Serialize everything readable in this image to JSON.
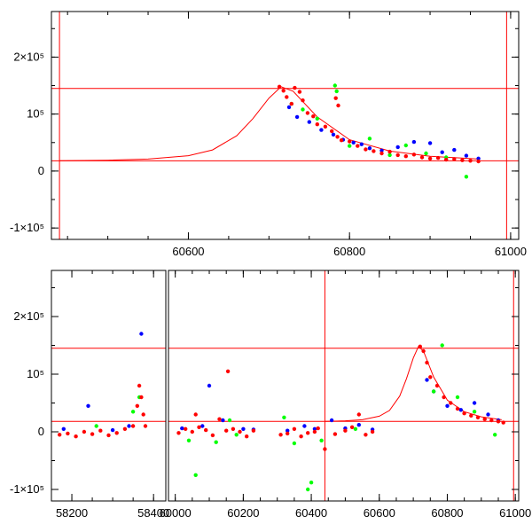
{
  "colors": {
    "model": "#ff0000",
    "series_red": "#ff0000",
    "series_blue": "#0000ff",
    "series_green": "#00ff00",
    "axes": "#000000"
  },
  "chart_data": [
    {
      "type": "scatter",
      "panel": "top",
      "title": "",
      "xlabel": "",
      "ylabel": "",
      "xlim": [
        60430,
        61010
      ],
      "ylim": [
        -120000,
        280000
      ],
      "x_ticks": [
        60600,
        60800,
        61000
      ],
      "x_tick_labels": [
        "60600",
        "60800",
        "61000"
      ],
      "y_ticks": [
        -100000,
        0,
        100000,
        200000
      ],
      "y_tick_labels": [
        "-1×10⁵",
        "0",
        "10⁵",
        "2×10⁵"
      ],
      "hlines": [
        145000,
        18000
      ],
      "vlines": [
        60440,
        60995
      ],
      "model_curve": {
        "x": [
          60440,
          60500,
          60550,
          60600,
          60630,
          60660,
          60680,
          60700,
          60715,
          60730,
          60760,
          60800,
          60850,
          60900,
          60960
        ],
        "y": [
          18000,
          19000,
          21000,
          27000,
          37000,
          62000,
          92000,
          128000,
          148000,
          140000,
          95000,
          55000,
          35000,
          26000,
          21000
        ]
      },
      "series": [
        {
          "name": "red",
          "x": [
            60713,
            60718,
            60722,
            60728,
            60732,
            60738,
            60742,
            60748,
            60755,
            60760,
            60770,
            60778,
            60785,
            60790,
            60800,
            60810,
            60820,
            60830,
            60840,
            60850,
            60860,
            60870,
            60880,
            60890,
            60900,
            60910,
            60920,
            60930,
            60940,
            60950,
            60960,
            60783,
            60786
          ],
          "y": [
            148000,
            141000,
            130000,
            118000,
            146000,
            139000,
            124000,
            102000,
            96000,
            82000,
            78000,
            70000,
            60000,
            54000,
            52000,
            44000,
            38000,
            35000,
            31000,
            34000,
            28000,
            26000,
            29000,
            24000,
            22000,
            23000,
            20000,
            21000,
            19000,
            18000,
            17000,
            128000,
            115000
          ]
        },
        {
          "name": "blue",
          "x": [
            60725,
            60735,
            60750,
            60765,
            60780,
            60792,
            60805,
            60815,
            60825,
            60840,
            60860,
            60880,
            60900,
            60915,
            60930,
            60945,
            60960
          ],
          "y": [
            112000,
            95000,
            86000,
            72000,
            64000,
            55000,
            50000,
            47000,
            40000,
            36000,
            42000,
            51000,
            49000,
            33000,
            37000,
            27000,
            22000
          ]
        },
        {
          "name": "green",
          "x": [
            60728,
            60742,
            60760,
            60782,
            60784,
            60800,
            60825,
            60850,
            60870,
            60895,
            60920,
            60945
          ],
          "y": [
            118000,
            108000,
            92000,
            150000,
            140000,
            44000,
            57000,
            28000,
            45000,
            31000,
            24000,
            -10000
          ]
        }
      ]
    },
    {
      "type": "scatter",
      "panel": "bottom",
      "title": "",
      "xlabel": "",
      "ylabel": "",
      "ylim": [
        -120000,
        280000
      ],
      "segments": [
        {
          "xlim": [
            58150,
            58430
          ],
          "x_ticks": [
            58200,
            58400
          ],
          "x_tick_labels": [
            "58200",
            "58400"
          ]
        },
        {
          "xlim": [
            59980,
            61010
          ],
          "x_ticks": [
            60000,
            60200,
            60400,
            60600,
            60800,
            61000
          ],
          "x_tick_labels": [
            "60000",
            "60200",
            "60400",
            "60600",
            "60800",
            "61000"
          ]
        }
      ],
      "y_ticks": [
        -100000,
        0,
        100000,
        200000
      ],
      "y_tick_labels": [
        "-1×10⁵",
        "0",
        "10⁵",
        "2×10⁵"
      ],
      "hlines": [
        145000,
        18000
      ],
      "vlines": [
        60440,
        60995
      ],
      "model_curve": {
        "x": [
          60440,
          60500,
          60550,
          60600,
          60630,
          60660,
          60680,
          60700,
          60715,
          60730,
          60760,
          60800,
          60850,
          60900,
          60960
        ],
        "y": [
          18000,
          19000,
          21000,
          27000,
          37000,
          62000,
          92000,
          128000,
          148000,
          140000,
          95000,
          55000,
          35000,
          26000,
          21000
        ]
      },
      "series": [
        {
          "name": "red",
          "x": [
            58170,
            58190,
            58210,
            58230,
            58250,
            58270,
            58290,
            58310,
            58330,
            58350,
            58360,
            58365,
            58370,
            58375,
            58380,
            60010,
            60030,
            60050,
            60060,
            60070,
            60090,
            60110,
            60130,
            60150,
            60155,
            60170,
            60190,
            60210,
            60230,
            60310,
            60330,
            60350,
            60370,
            60390,
            60410,
            60420,
            60440,
            60470,
            60500,
            60520,
            60540,
            60560,
            60580,
            60720,
            60730,
            60740,
            60750,
            60770,
            60790,
            60810,
            60830,
            60850,
            60870,
            60890,
            60910,
            60930,
            60950,
            60965
          ],
          "y": [
            -5000,
            -3000,
            -8000,
            0,
            -4000,
            2000,
            -6000,
            -2000,
            5000,
            10000,
            45000,
            80000,
            60000,
            30000,
            10000,
            -2000,
            5000,
            0,
            30000,
            8000,
            3000,
            -6000,
            22000,
            2000,
            105000,
            5000,
            0,
            -8000,
            2000,
            -5000,
            -3000,
            5000,
            -8000,
            -2000,
            0,
            6000,
            -30000,
            -4000,
            2000,
            8000,
            30000,
            -5000,
            0,
            148000,
            140000,
            120000,
            95000,
            80000,
            60000,
            50000,
            40000,
            32000,
            28000,
            25000,
            22000,
            20000,
            18000,
            16000
          ]
        },
        {
          "name": "blue",
          "x": [
            58180,
            58240,
            58300,
            58340,
            58370,
            60020,
            60080,
            60100,
            60140,
            60200,
            60230,
            60330,
            60380,
            60410,
            60460,
            60500,
            60540,
            60580,
            60740,
            60760,
            60800,
            60840,
            60880,
            60920,
            60950
          ],
          "y": [
            5000,
            45000,
            3000,
            10000,
            170000,
            6000,
            10000,
            80000,
            20000,
            5000,
            4000,
            2000,
            10000,
            5000,
            20000,
            6000,
            12000,
            4000,
            90000,
            70000,
            45000,
            38000,
            50000,
            30000,
            20000
          ]
        },
        {
          "name": "green",
          "x": [
            58260,
            58350,
            58365,
            60040,
            60060,
            60120,
            60160,
            60180,
            60320,
            60350,
            60390,
            60400,
            60430,
            60530,
            60760,
            60785,
            60830,
            60880,
            60940
          ],
          "y": [
            10000,
            35000,
            60000,
            -15000,
            -75000,
            -18000,
            20000,
            -5000,
            25000,
            -20000,
            -100000,
            -88000,
            -15000,
            5000,
            70000,
            150000,
            60000,
            35000,
            -5000
          ]
        }
      ]
    }
  ]
}
